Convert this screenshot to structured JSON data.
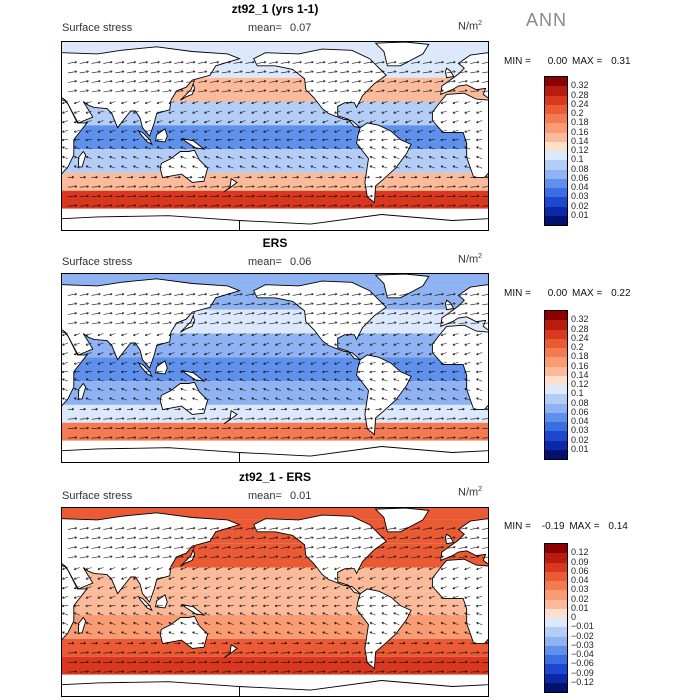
{
  "season": "ANN",
  "panels": [
    {
      "title": "zt92_1 (yrs 1-1)",
      "variable": "Surface stress",
      "mean_label": "mean=",
      "mean": "0.07",
      "units": "N/m",
      "units_sup": "2",
      "min_label": "MIN =",
      "min": "0.00",
      "max_label": "MAX =",
      "max": "0.31",
      "levels": [
        "0.32",
        "0.28",
        "0.24",
        "0.2",
        "0.18",
        "0.16",
        "0.14",
        "0.12",
        "0.1",
        "0.08",
        "0.06",
        "0.04",
        "0.03",
        "0.02",
        "0.01"
      ],
      "colors": [
        "#8b0000",
        "#b71c0e",
        "#d9381e",
        "#ea5a34",
        "#f47b51",
        "#f99b73",
        "#fbbb9a",
        "#fde0cc",
        "#dce8fb",
        "#b4cdf6",
        "#8fb3f2",
        "#5f90ec",
        "#3a6ee3",
        "#1b48cf",
        "#0b28a8",
        "#00126e"
      ]
    },
    {
      "title": "ERS",
      "variable": "Surface stress",
      "mean_label": "mean=",
      "mean": "0.06",
      "units": "N/m",
      "units_sup": "2",
      "min_label": "MIN =",
      "min": "0.00",
      "max_label": "MAX =",
      "max": "0.22",
      "levels": [
        "0.32",
        "0.28",
        "0.24",
        "0.2",
        "0.18",
        "0.16",
        "0.14",
        "0.12",
        "0.1",
        "0.08",
        "0.06",
        "0.04",
        "0.03",
        "0.02",
        "0.01"
      ],
      "colors": [
        "#8b0000",
        "#b71c0e",
        "#d9381e",
        "#ea5a34",
        "#f47b51",
        "#f99b73",
        "#fbbb9a",
        "#fde0cc",
        "#dce8fb",
        "#b4cdf6",
        "#8fb3f2",
        "#5f90ec",
        "#3a6ee3",
        "#1b48cf",
        "#0b28a8",
        "#00126e"
      ]
    },
    {
      "title": "zt92_1 - ERS",
      "variable": "Surface stress",
      "mean_label": "mean=",
      "mean": "0.01",
      "units": "N/m",
      "units_sup": "2",
      "min_label": "MIN =",
      "min": "-0.19",
      "max_label": "MAX =",
      "max": "0.14",
      "levels": [
        "0.12",
        "0.09",
        "0.06",
        "0.04",
        "0.03",
        "0.02",
        "0.01",
        "0",
        "-0.01",
        "-0.02",
        "-0.03",
        "-0.04",
        "-0.06",
        "-0.09",
        "-0.12"
      ],
      "colors": [
        "#8b0000",
        "#b71c0e",
        "#d9381e",
        "#ea5a34",
        "#f47b51",
        "#f99b73",
        "#fbbb9a",
        "#fde0cc",
        "#dce8fb",
        "#b4cdf6",
        "#8fb3f2",
        "#5f90ec",
        "#3a6ee3",
        "#1b48cf",
        "#0b28a8",
        "#00126e"
      ]
    }
  ],
  "chart_data": [
    {
      "type": "heatmap",
      "title": "zt92_1 (yrs 1-1)",
      "field": "Surface stress",
      "units": "N/m2",
      "mean": 0.07,
      "min": 0.0,
      "max": 0.31,
      "bands": [
        {
          "lat": [
            50,
            70
          ],
          "value": 0.1
        },
        {
          "lat": [
            30,
            50
          ],
          "value": 0.14
        },
        {
          "lat": [
            10,
            30
          ],
          "value": 0.08
        },
        {
          "lat": [
            -10,
            10
          ],
          "value": 0.05
        },
        {
          "lat": [
            -30,
            -10
          ],
          "value": 0.09
        },
        {
          "lat": [
            -45,
            -30
          ],
          "value": 0.14
        },
        {
          "lat": [
            -60,
            -45
          ],
          "value": 0.24
        }
      ]
    },
    {
      "type": "heatmap",
      "title": "ERS",
      "field": "Surface stress",
      "units": "N/m2",
      "mean": 0.06,
      "min": 0.0,
      "max": 0.22,
      "bands": [
        {
          "lat": [
            50,
            70
          ],
          "value": 0.06
        },
        {
          "lat": [
            30,
            50
          ],
          "value": 0.1
        },
        {
          "lat": [
            10,
            30
          ],
          "value": 0.07
        },
        {
          "lat": [
            -10,
            10
          ],
          "value": 0.04
        },
        {
          "lat": [
            -30,
            -10
          ],
          "value": 0.07
        },
        {
          "lat": [
            -45,
            -30
          ],
          "value": 0.1
        },
        {
          "lat": [
            -60,
            -45
          ],
          "value": 0.18
        }
      ]
    },
    {
      "type": "heatmap",
      "title": "zt92_1 - ERS",
      "field": "Surface stress",
      "units": "N/m2",
      "mean": 0.01,
      "min": -0.19,
      "max": 0.14,
      "bands": [
        {
          "lat": [
            50,
            70
          ],
          "value": 0.04
        },
        {
          "lat": [
            30,
            50
          ],
          "value": 0.04
        },
        {
          "lat": [
            10,
            30
          ],
          "value": 0.01
        },
        {
          "lat": [
            -10,
            10
          ],
          "value": 0.01
        },
        {
          "lat": [
            -30,
            -10
          ],
          "value": 0.02
        },
        {
          "lat": [
            -45,
            -30
          ],
          "value": 0.04
        },
        {
          "lat": [
            -60,
            -45
          ],
          "value": 0.06
        }
      ]
    }
  ]
}
